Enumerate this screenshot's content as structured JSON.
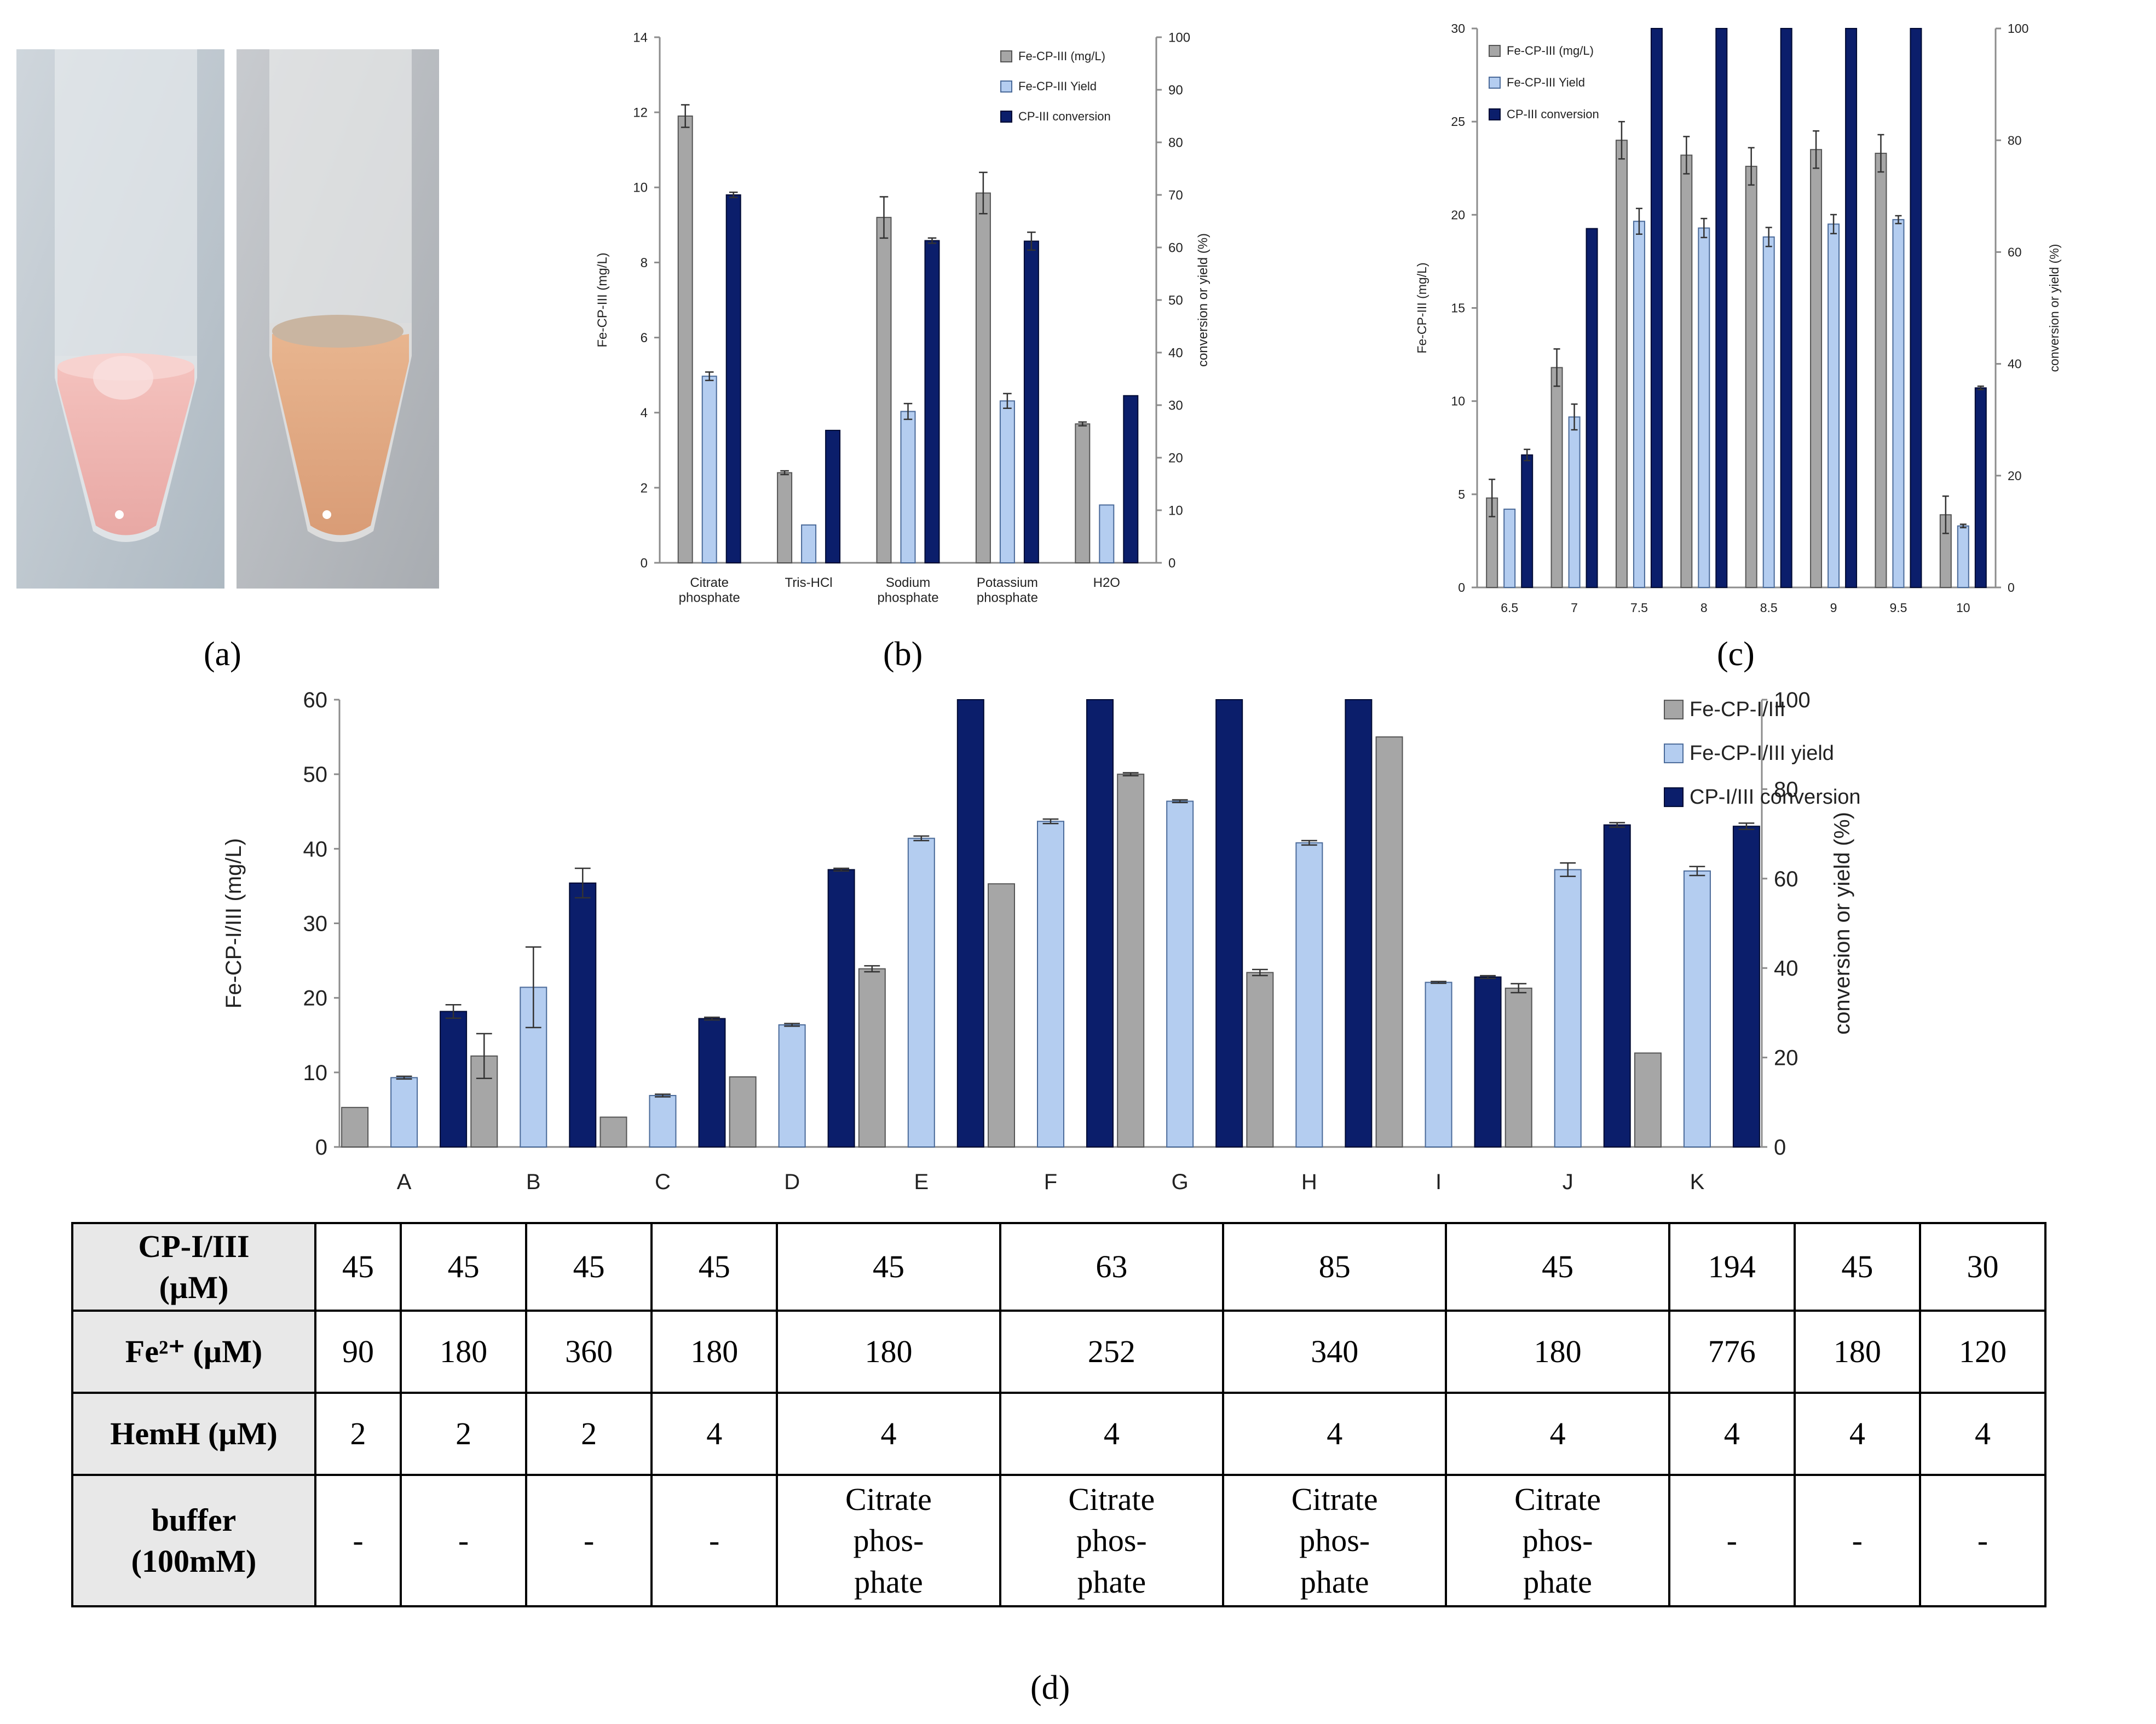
{
  "panels": {
    "a": "(a)",
    "b": "(b)",
    "c": "(c)",
    "d": "(d)"
  },
  "chart_data": [
    {
      "panel": "b",
      "type": "bar",
      "categories": [
        "Citrate\nphosphate",
        "Tris-HCl",
        "Sodium\nphosphate",
        "Potassium\nphosphate",
        "H2O"
      ],
      "series": [
        {
          "name": "Fe-CP-III (mg/L)",
          "axis": "left",
          "values": [
            11.9,
            2.4,
            9.2,
            9.85,
            3.7
          ],
          "errors": [
            0.3,
            0.05,
            0.55,
            0.55,
            0.05
          ]
        },
        {
          "name": "Fe-CP-III Yield",
          "axis": "right",
          "values": [
            35.5,
            7.2,
            28.8,
            30.8,
            11.0
          ],
          "errors": [
            0.8,
            0,
            1.5,
            1.4,
            0
          ]
        },
        {
          "name": "CP-III conversion",
          "axis": "right",
          "values": [
            70.0,
            25.2,
            61.3,
            61.2,
            31.8
          ],
          "errors": [
            0.5,
            0,
            0.5,
            1.7,
            0
          ]
        }
      ],
      "ylabel": "Fe-CP-III (mg/L)",
      "y2label": "conversion or yield (%)",
      "ylim": [
        0,
        14
      ],
      "y2lim": [
        0,
        100
      ],
      "yticks": [
        0,
        2,
        4,
        6,
        8,
        10,
        12,
        14
      ],
      "y2ticks": [
        0,
        10,
        20,
        30,
        40,
        50,
        60,
        70,
        80,
        90,
        100
      ],
      "legend": "top-right"
    },
    {
      "panel": "c",
      "type": "bar",
      "categories": [
        "6.5",
        "7",
        "7.5",
        "8",
        "8.5",
        "9",
        "9.5",
        "10"
      ],
      "series": [
        {
          "name": "Fe-CP-III (mg/L)",
          "axis": "left",
          "values": [
            4.8,
            11.8,
            24.0,
            23.2,
            22.6,
            23.5,
            23.3,
            3.9
          ],
          "errors": [
            1.0,
            1.0,
            1.0,
            1.0,
            1.0,
            1.0,
            1.0,
            1.0
          ]
        },
        {
          "name": "Fe-CP-III Yield",
          "axis": "right",
          "values": [
            14.0,
            30.5,
            65.5,
            64.3,
            62.7,
            65.0,
            65.8,
            11.0
          ],
          "errors": [
            0,
            2.3,
            2.3,
            1.7,
            1.7,
            1.7,
            0.7,
            0.3
          ]
        },
        {
          "name": "CP-III conversion",
          "axis": "right",
          "values": [
            23.7,
            64.2,
            100,
            100,
            100,
            100,
            100,
            35.7
          ],
          "errors": [
            1.0,
            0,
            0,
            0,
            0,
            0,
            0,
            0.3
          ]
        }
      ],
      "ylabel": "Fe-CP-III (mg/L)",
      "y2label": "conversion or yield (%)",
      "ylim": [
        0,
        30
      ],
      "y2lim": [
        0,
        100
      ],
      "yticks": [
        0,
        5,
        10,
        15,
        20,
        25,
        30
      ],
      "y2ticks": [
        0,
        20,
        40,
        60,
        80,
        100
      ],
      "legend": "top-left"
    },
    {
      "panel": "d",
      "type": "bar",
      "categories": [
        "A",
        "B",
        "C",
        "D",
        "E",
        "F",
        "G",
        "H",
        "I",
        "J",
        "K"
      ],
      "series": [
        {
          "name": "Fe-CP-I/III",
          "axis": "left",
          "values": [
            5.3,
            12.2,
            4.0,
            9.4,
            23.9,
            35.3,
            50.0,
            23.4,
            55.0,
            21.3,
            12.6
          ],
          "errors": [
            0,
            3.0,
            0,
            0,
            0.4,
            0,
            0.2,
            0.4,
            0,
            0.6,
            0
          ]
        },
        {
          "name": "Fe-CP-I/III yield",
          "axis": "right",
          "values": [
            15.5,
            35.7,
            11.5,
            27.3,
            69.0,
            72.8,
            77.3,
            68.0,
            36.8,
            62.0,
            61.7
          ],
          "errors": [
            0.3,
            9.0,
            0.3,
            0.3,
            0.5,
            0.5,
            0.3,
            0.5,
            0.2,
            1.5,
            1.0
          ]
        },
        {
          "name": "CP-I/III conversion",
          "axis": "right",
          "values": [
            30.3,
            59.0,
            28.7,
            62.0,
            100,
            100,
            100,
            100,
            38.0,
            72.0,
            71.7
          ],
          "errors": [
            1.5,
            3.3,
            0.3,
            0.3,
            0,
            0,
            0,
            0,
            0.3,
            0.5,
            0.7
          ]
        }
      ],
      "ylabel": "Fe-CP-I/III (mg/L)",
      "y2label": "conversion or yield (%)",
      "ylim": [
        0,
        60
      ],
      "y2lim": [
        0,
        100
      ],
      "yticks": [
        0,
        10,
        20,
        30,
        40,
        50,
        60
      ],
      "y2ticks": [
        0,
        20,
        40,
        60,
        80,
        100
      ],
      "legend": "top-right"
    }
  ],
  "table": {
    "row_headers": [
      "CP-I/III\n(µM)",
      "Fe²⁺ (µM)",
      "HemH (µM)",
      "buffer\n(100mM)"
    ],
    "rows": [
      [
        "45",
        "45",
        "45",
        "45",
        "45",
        "63",
        "85",
        "45",
        "194",
        "45",
        "30"
      ],
      [
        "90",
        "180",
        "360",
        "180",
        "180",
        "252",
        "340",
        "180",
        "776",
        "180",
        "120"
      ],
      [
        "2",
        "2",
        "2",
        "4",
        "4",
        "4",
        "4",
        "4",
        "4",
        "4",
        "4"
      ],
      [
        "-",
        "-",
        "-",
        "-",
        "Citrate\nphos-\nphate",
        "Citrate\nphos-\nphate",
        "Citrate\nphos-\nphate",
        "Citrate\nphos-\nphate",
        "-",
        "-",
        "-"
      ]
    ]
  },
  "colors": {
    "gray": "#a6a6a6",
    "lightblue": "#b4cdf0",
    "navy": "#0b1e6b"
  }
}
